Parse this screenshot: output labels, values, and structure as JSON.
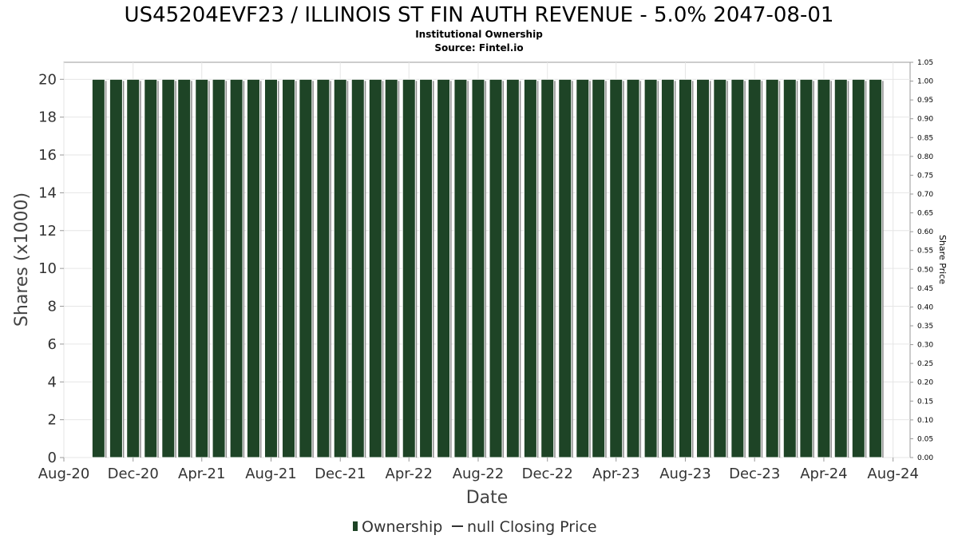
{
  "chart_data": {
    "type": "bar",
    "title": "US45204EVF23 / ILLINOIS ST FIN AUTH REVENUE - 5.0% 2047-08-01",
    "subtitle": "Institutional Ownership",
    "source": "Source: Fintel.io",
    "xlabel": "Date",
    "ylabel": "Shares (x1000)",
    "ylabel2": "Share Price",
    "x_ticks": [
      "Aug-20",
      "Dec-20",
      "Apr-21",
      "Aug-21",
      "Dec-21",
      "Apr-22",
      "Aug-22",
      "Dec-22",
      "Apr-23",
      "Aug-23",
      "Dec-23",
      "Apr-24",
      "Aug-24"
    ],
    "y_ticks": [
      "0",
      "2",
      "4",
      "6",
      "8",
      "10",
      "12",
      "14",
      "16",
      "18",
      "20"
    ],
    "y2_ticks": [
      "0.00",
      "0.05",
      "0.10",
      "0.15",
      "0.20",
      "0.25",
      "0.30",
      "0.35",
      "0.40",
      "0.45",
      "0.50",
      "0.55",
      "0.60",
      "0.65",
      "0.70",
      "0.75",
      "0.80",
      "0.85",
      "0.90",
      "0.95",
      "1.00",
      "1.05"
    ],
    "ylim": [
      0,
      20.9
    ],
    "y2lim": [
      0,
      1.05
    ],
    "xlim": [
      "2020-08-01",
      "2024-08-31"
    ],
    "grid": true,
    "legend": "bottom",
    "series": [
      {
        "name": "Ownership",
        "type": "bar",
        "color": "#1e4426",
        "x": [
          "2020-10-01",
          "2020-11-01",
          "2020-12-01",
          "2021-01-01",
          "2021-02-01",
          "2021-03-01",
          "2021-04-01",
          "2021-05-01",
          "2021-06-01",
          "2021-07-01",
          "2021-08-01",
          "2021-09-01",
          "2021-10-01",
          "2021-11-01",
          "2021-12-01",
          "2022-01-01",
          "2022-02-01",
          "2022-03-01",
          "2022-04-01",
          "2022-05-01",
          "2022-06-01",
          "2022-07-01",
          "2022-08-01",
          "2022-09-01",
          "2022-10-01",
          "2022-11-01",
          "2022-12-01",
          "2023-01-01",
          "2023-02-01",
          "2023-03-01",
          "2023-04-01",
          "2023-05-01",
          "2023-06-01",
          "2023-07-01",
          "2023-08-01",
          "2023-09-01",
          "2023-10-01",
          "2023-11-01",
          "2023-12-01",
          "2024-01-01",
          "2024-02-01",
          "2024-03-01",
          "2024-04-01",
          "2024-05-01",
          "2024-06-01",
          "2024-07-01"
        ],
        "values": [
          20,
          20,
          20,
          20,
          20,
          20,
          20,
          20,
          20,
          20,
          20,
          20,
          20,
          20,
          20,
          20,
          20,
          20,
          20,
          20,
          20,
          20,
          20,
          20,
          20,
          20,
          20,
          20,
          20,
          20,
          20,
          20,
          20,
          20,
          20,
          20,
          20,
          20,
          20,
          20,
          20,
          20,
          20,
          20,
          20,
          20
        ]
      },
      {
        "name": "null Closing Price",
        "type": "line",
        "color": "#333333",
        "x": [],
        "values": []
      }
    ]
  }
}
